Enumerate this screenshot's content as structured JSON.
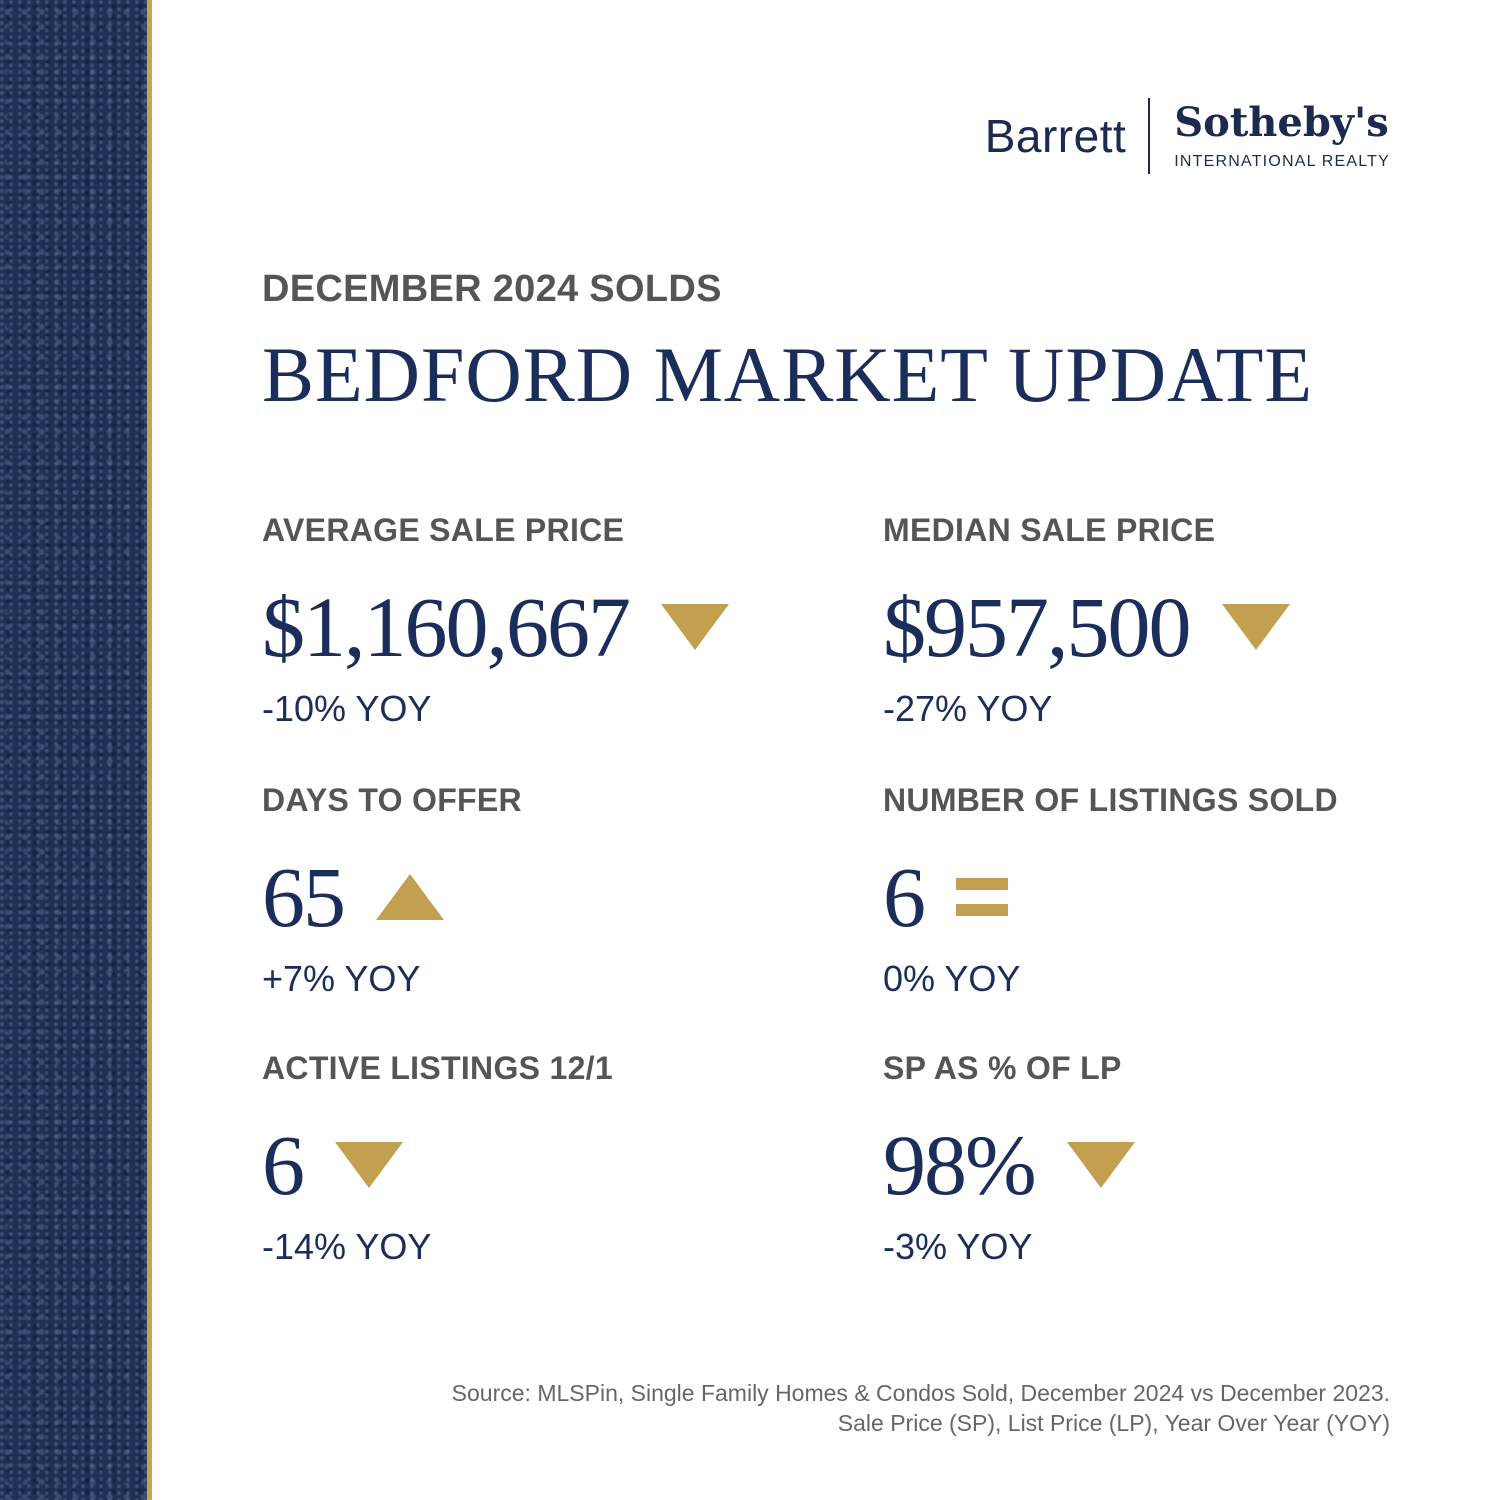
{
  "brand": {
    "name_left": "Barrett",
    "name_right": "Sotheby's",
    "tagline": "INTERNATIONAL REALTY"
  },
  "header": {
    "kicker": "DECEMBER 2024 SOLDS",
    "title": "BEDFORD MARKET UPDATE"
  },
  "colors": {
    "navy": "#1b2d5a",
    "gold": "#c2a04f",
    "gray": "#555555"
  },
  "stats": [
    {
      "label": "AVERAGE SALE PRICE",
      "value": "$1,160,667",
      "trend": "down",
      "yoy": "-10% YOY"
    },
    {
      "label": "MEDIAN SALE PRICE",
      "value": "$957,500",
      "trend": "down",
      "yoy": "-27% YOY"
    },
    {
      "label": "DAYS TO OFFER",
      "value": "65",
      "trend": "up",
      "yoy": "+7% YOY"
    },
    {
      "label": "NUMBER OF LISTINGS SOLD",
      "value": "6",
      "trend": "equal",
      "yoy": "0% YOY"
    },
    {
      "label": "ACTIVE LISTINGS 12/1",
      "value": "6",
      "trend": "down",
      "yoy": "-14% YOY"
    },
    {
      "label": "SP AS % OF LP",
      "value": "98%",
      "trend": "down",
      "yoy": "-3% YOY"
    }
  ],
  "footer": {
    "line1": "Source: MLSPin, Single Family Homes & Condos Sold, December 2024 vs December 2023.",
    "line2": "Sale Price (SP), List Price (LP), Year Over Year (YOY)"
  }
}
